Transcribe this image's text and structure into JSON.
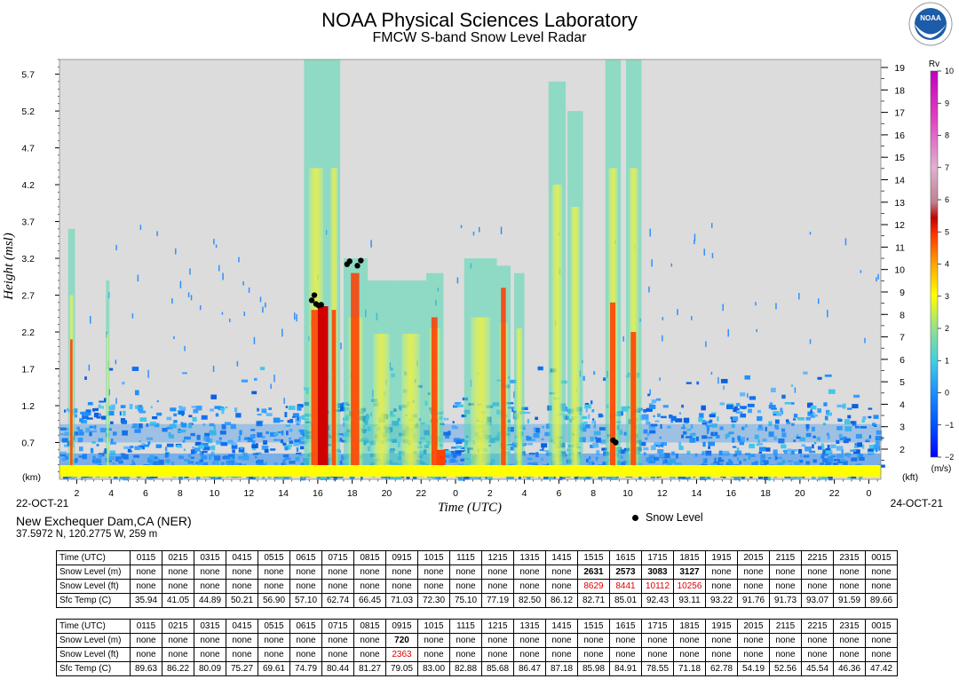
{
  "title": "NOAA Physical Sciences Laboratory",
  "subtitle": "FMCW S-band Snow Level Radar",
  "logo_text": "NOAA",
  "location": "New Exchequer Dam,CA (NER)",
  "coordinates": "37.5972 N, 120.2775 W, 259 m",
  "legend_label": "Snow Level",
  "colors": {
    "background": "#dcdcdc",
    "ground": "#ffff00",
    "snow_marker": "#000000"
  },
  "chart_data": {
    "type": "heatmap",
    "xlabel": "Time (UTC)",
    "ylabel": "Height (msl)",
    "start_date": "22-OCT-21",
    "end_date": "24-OCT-21",
    "x_unit_label": "",
    "y_unit_left": "(km)",
    "y_unit_right": "(kft)",
    "xlim_hours": [
      1,
      24.7
    ],
    "x_tick_labels": [
      "2",
      "4",
      "6",
      "8",
      "10",
      "12",
      "14",
      "16",
      "18",
      "20",
      "22",
      "0",
      "2",
      "4",
      "6",
      "8",
      "10",
      "12",
      "14",
      "16",
      "18",
      "20",
      "22",
      "0"
    ],
    "y_ticks_km": [
      0.7,
      1.2,
      1.7,
      2.2,
      2.7,
      3.2,
      3.7,
      4.2,
      4.7,
      5.2,
      5.7
    ],
    "y_ticks_kft": [
      2,
      3,
      4,
      5,
      6,
      7,
      8,
      9,
      10,
      11,
      12,
      13,
      14,
      15,
      16,
      17,
      18,
      19
    ],
    "ylim_km": [
      0.2,
      5.9
    ],
    "colorbar": {
      "label": "Rv",
      "unit": "(m/s)",
      "ticks": [
        -2,
        -1,
        0,
        1,
        2,
        3,
        4,
        5,
        6,
        7,
        8,
        9,
        10
      ],
      "range": [
        -2,
        10
      ]
    },
    "snow_level_points": [
      {
        "t": 15.65,
        "h": 2.63
      },
      {
        "t": 15.8,
        "h": 2.7
      },
      {
        "t": 15.9,
        "h": 2.58
      },
      {
        "t": 16.05,
        "h": 2.56
      },
      {
        "t": 16.2,
        "h": 2.57
      },
      {
        "t": 17.7,
        "h": 3.12
      },
      {
        "t": 17.85,
        "h": 3.16
      },
      {
        "t": 18.3,
        "h": 3.1
      },
      {
        "t": 18.5,
        "h": 3.17
      },
      {
        "t": 33.15,
        "h": 0.73
      },
      {
        "t": 33.3,
        "h": 0.7
      }
    ]
  },
  "table1": {
    "header": [
      "Time (UTC)",
      "0115",
      "0215",
      "0315",
      "0415",
      "0515",
      "0615",
      "0715",
      "0815",
      "0915",
      "1015",
      "1115",
      "1215",
      "1315",
      "1415",
      "1515",
      "1615",
      "1715",
      "1815",
      "1915",
      "2015",
      "2115",
      "2215",
      "2315",
      "0015"
    ],
    "snow_m": [
      "Snow Level (m)",
      "none",
      "none",
      "none",
      "none",
      "none",
      "none",
      "none",
      "none",
      "none",
      "none",
      "none",
      "none",
      "none",
      "none",
      "2631",
      "2573",
      "3083",
      "3127",
      "none",
      "none",
      "none",
      "none",
      "none",
      "none"
    ],
    "snow_ft": [
      "Snow Level (ft)",
      "none",
      "none",
      "none",
      "none",
      "none",
      "none",
      "none",
      "none",
      "none",
      "none",
      "none",
      "none",
      "none",
      "none",
      "8629",
      "8441",
      "10112",
      "10256",
      "none",
      "none",
      "none",
      "none",
      "none",
      "none"
    ],
    "sfc_temp": [
      "Sfc Temp (C)",
      "35.94",
      "41.05",
      "44.89",
      "50.21",
      "56.90",
      "57.10",
      "62.74",
      "66.45",
      "71.03",
      "72.30",
      "75.10",
      "77.19",
      "82.50",
      "86.12",
      "82.71",
      "85.01",
      "92.43",
      "93.11",
      "93.22",
      "91.76",
      "91.73",
      "93.07",
      "91.59",
      "89.66"
    ]
  },
  "table2": {
    "header": [
      "Time (UTC)",
      "0115",
      "0215",
      "0315",
      "0415",
      "0515",
      "0615",
      "0715",
      "0815",
      "0915",
      "1015",
      "1115",
      "1215",
      "1315",
      "1415",
      "1515",
      "1615",
      "1715",
      "1815",
      "1915",
      "2015",
      "2115",
      "2215",
      "2315",
      "0015"
    ],
    "snow_m": [
      "Snow Level (m)",
      "none",
      "none",
      "none",
      "none",
      "none",
      "none",
      "none",
      "none",
      "720",
      "none",
      "none",
      "none",
      "none",
      "none",
      "none",
      "none",
      "none",
      "none",
      "none",
      "none",
      "none",
      "none",
      "none",
      "none"
    ],
    "snow_ft": [
      "Snow Level (ft)",
      "none",
      "none",
      "none",
      "none",
      "none",
      "none",
      "none",
      "none",
      "2363",
      "none",
      "none",
      "none",
      "none",
      "none",
      "none",
      "none",
      "none",
      "none",
      "none",
      "none",
      "none",
      "none",
      "none",
      "none"
    ],
    "sfc_temp": [
      "Sfc Temp (C)",
      "89.63",
      "86.22",
      "80.09",
      "75.27",
      "69.61",
      "74.79",
      "80.44",
      "81.27",
      "79.05",
      "83.00",
      "82.88",
      "85.68",
      "86.47",
      "87.18",
      "85.98",
      "84.91",
      "78.55",
      "71.18",
      "62.78",
      "54.19",
      "52.56",
      "45.54",
      "46.36",
      "47.42"
    ]
  }
}
